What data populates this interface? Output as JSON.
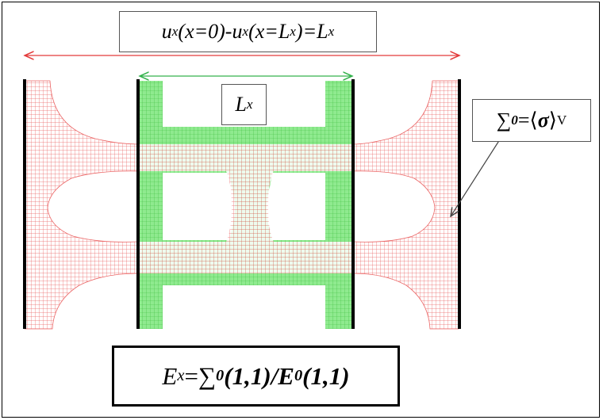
{
  "labels": {
    "boundary_condition": {
      "lhs_sym": "u",
      "lhs_sub": "x",
      "lhs_arg": "(x=0)-",
      "rhs_sym": "u",
      "rhs_sub": "x",
      "rhs_arg_open": "(x=L",
      "rhs_arg_sub": "x",
      "rhs_arg_close": ")=L",
      "result_sub": "x"
    },
    "cell_length": {
      "sym": "L",
      "sub": "x"
    },
    "macro_stress": {
      "sum": "∑",
      "sup": "0",
      "eq": "=⟨",
      "sigma": "σ",
      "close": "⟩",
      "sub": "V"
    },
    "modulus": {
      "sym": "E",
      "sub": "x",
      "eq": "= ",
      "sum": "∑",
      "sup": "0",
      "arg1": "(1,1)/",
      "E": "E",
      "sup2": "0",
      "arg2": "(1,1)"
    }
  },
  "colors": {
    "deformed_mesh": "#e84a4a",
    "undeformed_mesh": "#7be07b",
    "dim_red": "#e33a3a",
    "dim_green": "#34b24c",
    "boundary": "#000000"
  }
}
